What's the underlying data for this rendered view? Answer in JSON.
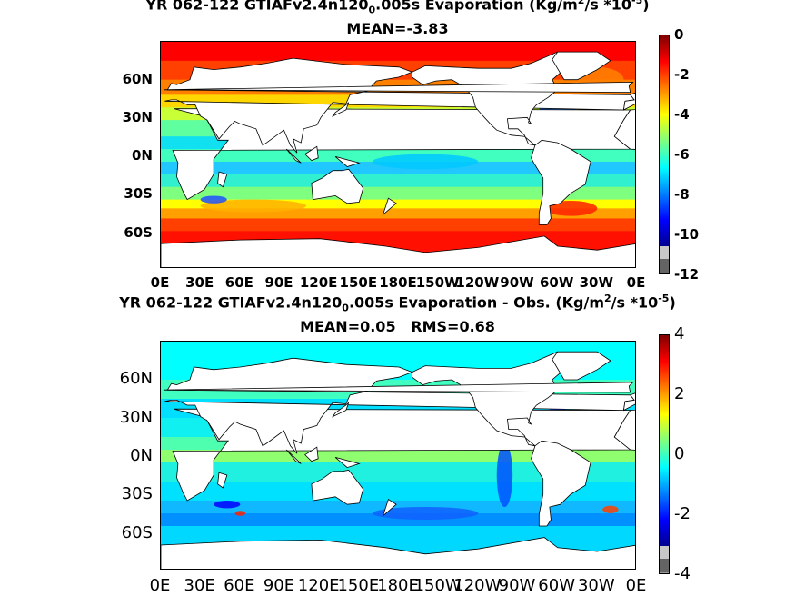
{
  "chart_data": [
    {
      "type": "heatmap",
      "title_parts": [
        "YR 062-122 GTIAFv2.4n120",
        "0",
        ".005s  Evaporation (Kg/m",
        "2",
        "/s *10",
        "-5",
        ")"
      ],
      "subtitle": "MEAN=-3.83",
      "x_ticks": [
        "0E",
        "30E",
        "60E",
        "90E",
        "120E",
        "150E",
        "180E",
        "150W",
        "120W",
        "90W",
        "60W",
        "30W",
        "0E"
      ],
      "y_ticks": [
        "60N",
        "30N",
        "0N",
        "30S",
        "60S"
      ],
      "colorbar": {
        "ticks": [
          "0",
          "-2",
          "-4",
          "-6",
          "-8",
          "-10",
          "-12"
        ],
        "min": -12,
        "max": 0
      }
    },
    {
      "type": "heatmap",
      "title_parts": [
        "YR 062-122 GTIAFv2.4n120",
        "0",
        ".005s Evaporation - Obs. (Kg/m",
        "2",
        "/s *10",
        "-5",
        ")"
      ],
      "subtitle": "MEAN=0.05   RMS=0.68",
      "x_ticks": [
        "0E",
        "30E",
        "60E",
        "90E",
        "120E",
        "150E",
        "180E",
        "150W",
        "120W",
        "90W",
        "60W",
        "30W",
        "0E"
      ],
      "y_ticks": [
        "60N",
        "30N",
        "0N",
        "30S",
        "60S"
      ],
      "colorbar": {
        "ticks": [
          "4",
          "2",
          "0",
          "-2",
          "-4"
        ],
        "min": -4,
        "max": 4
      }
    }
  ],
  "colors": {
    "land": "#ffffff",
    "coast": "#000000",
    "jet": [
      "#00008f",
      "#0000ff",
      "#007fff",
      "#00ffff",
      "#7fff7f",
      "#ffff00",
      "#ff7f00",
      "#ff0000",
      "#800000"
    ],
    "missing": [
      "#c8c8c8",
      "#646464"
    ]
  }
}
